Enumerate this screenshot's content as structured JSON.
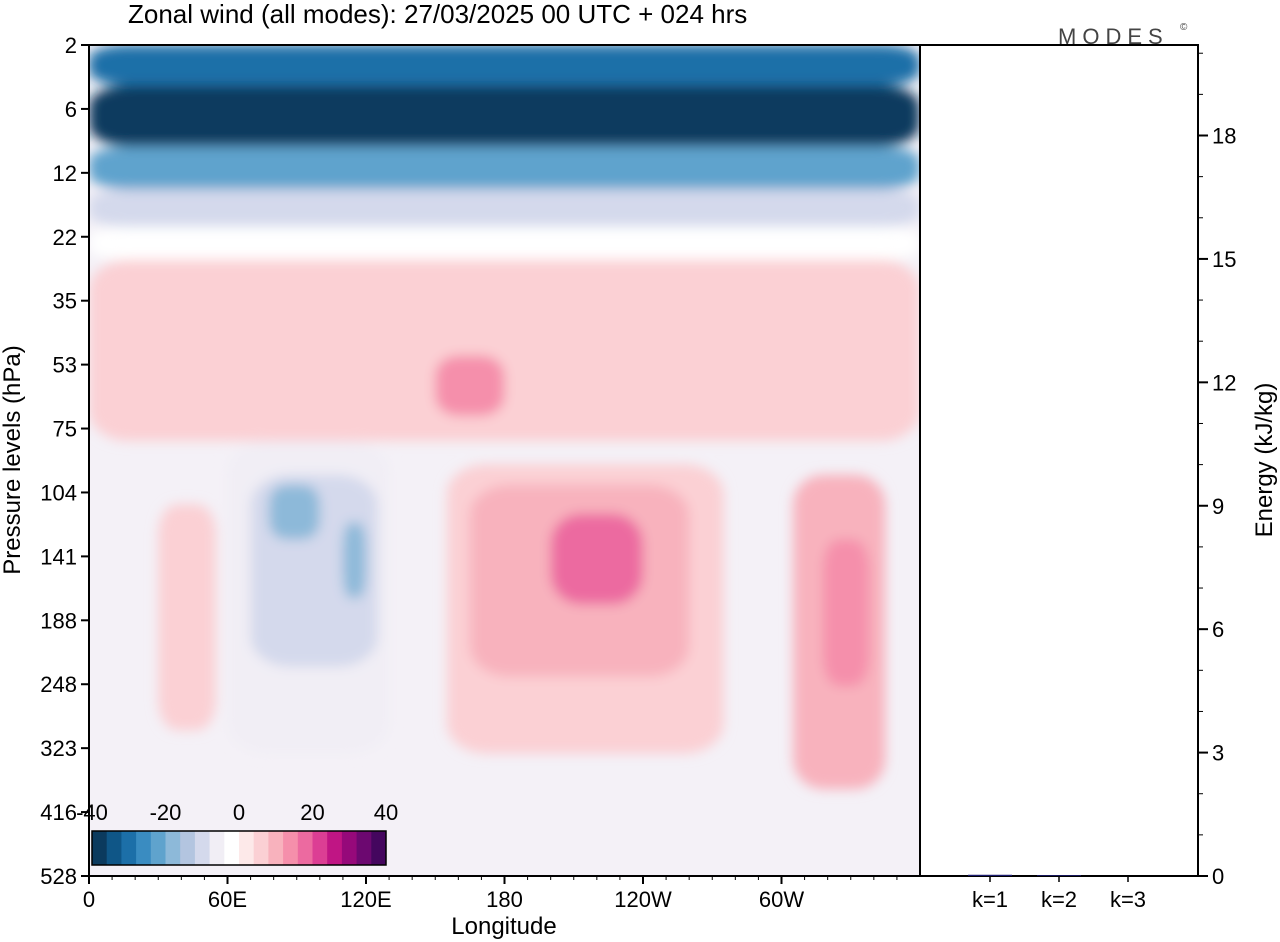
{
  "title": "Zonal wind (all modes):  27/03/2025  00 UTC  + 024 hrs",
  "logo": "MODES",
  "logo_mark": "©",
  "chart_data": [
    {
      "type": "heatmap",
      "title": "Zonal wind (all modes):  27/03/2025  00 UTC  + 024 hrs",
      "xlabel": "Longitude",
      "ylabel": "Pressure levels (hPa)",
      "x_ticks": [
        "0",
        "60E",
        "120E",
        "180",
        "120W",
        "60W"
      ],
      "x_tick_values": [
        0,
        60,
        120,
        180,
        240,
        300
      ],
      "xlim": [
        0,
        360
      ],
      "y_ticks": [
        "2",
        "6",
        "12",
        "22",
        "35",
        "53",
        "75",
        "104",
        "141",
        "188",
        "248",
        "323",
        "416",
        "528"
      ],
      "colorbar": {
        "tick_labels": [
          "-40",
          "-20",
          "0",
          "20",
          "40"
        ],
        "tick_values": [
          -40,
          -20,
          0,
          20,
          40
        ],
        "colors": [
          "#0b3a5e",
          "#0f5687",
          "#1c6fa8",
          "#3a8cc1",
          "#5fa3cd",
          "#8db9d9",
          "#b3c5e0",
          "#d4d9ec",
          "#f1eef5",
          "#ffffff",
          "#fde9e9",
          "#fbd0d4",
          "#f8b2bd",
          "#f58fab",
          "#ec6aa0",
          "#dc3e94",
          "#c01584",
          "#96097a",
          "#6c0870",
          "#44065e"
        ]
      },
      "regions": [
        {
          "lon": [
            0,
            360
          ],
          "lev": [
            2,
            4
          ],
          "value": -30
        },
        {
          "lon": [
            0,
            360
          ],
          "lev": [
            4,
            9
          ],
          "value": -38
        },
        {
          "lon": [
            0,
            360
          ],
          "lev": [
            9,
            14
          ],
          "value": -24
        },
        {
          "lon": [
            0,
            360
          ],
          "lev": [
            14,
            20
          ],
          "value": -12
        },
        {
          "lon": [
            0,
            360
          ],
          "lev": [
            20,
            26
          ],
          "value": -3
        },
        {
          "lon": [
            0,
            360
          ],
          "lev": [
            26,
            80
          ],
          "value": 4
        },
        {
          "lon": [
            0,
            360
          ],
          "lev": [
            32,
            70
          ],
          "value": 7
        },
        {
          "lon": [
            150,
            180
          ],
          "lev": [
            50,
            70
          ],
          "value": 12
        },
        {
          "lon": [
            60,
            130
          ],
          "lev": [
            80,
            330
          ],
          "value": -5
        },
        {
          "lon": [
            70,
            125
          ],
          "lev": [
            95,
            230
          ],
          "value": -12
        },
        {
          "lon": [
            78,
            100
          ],
          "lev": [
            100,
            130
          ],
          "value": -18
        },
        {
          "lon": [
            110,
            120
          ],
          "lev": [
            120,
            170
          ],
          "value": -18
        },
        {
          "lon": [
            155,
            275
          ],
          "lev": [
            90,
            330
          ],
          "value": 6
        },
        {
          "lon": [
            165,
            260
          ],
          "lev": [
            100,
            240
          ],
          "value": 10
        },
        {
          "lon": [
            200,
            240
          ],
          "lev": [
            115,
            175
          ],
          "value": 16
        },
        {
          "lon": [
            305,
            345
          ],
          "lev": [
            95,
            380
          ],
          "value": 8
        },
        {
          "lon": [
            318,
            338
          ],
          "lev": [
            130,
            250
          ],
          "value": 15
        },
        {
          "lon": [
            30,
            55
          ],
          "lev": [
            110,
            300
          ],
          "value": 5
        }
      ]
    },
    {
      "type": "bar",
      "categories": [
        "k=1",
        "k=2",
        "k=3"
      ],
      "values": [
        0.03,
        0.02,
        0.0
      ],
      "ylabel": "Energy (kJ/kg)",
      "ylim": [
        0,
        20.2
      ],
      "y_ticks": [
        0,
        3,
        6,
        9,
        12,
        15,
        18
      ]
    }
  ]
}
